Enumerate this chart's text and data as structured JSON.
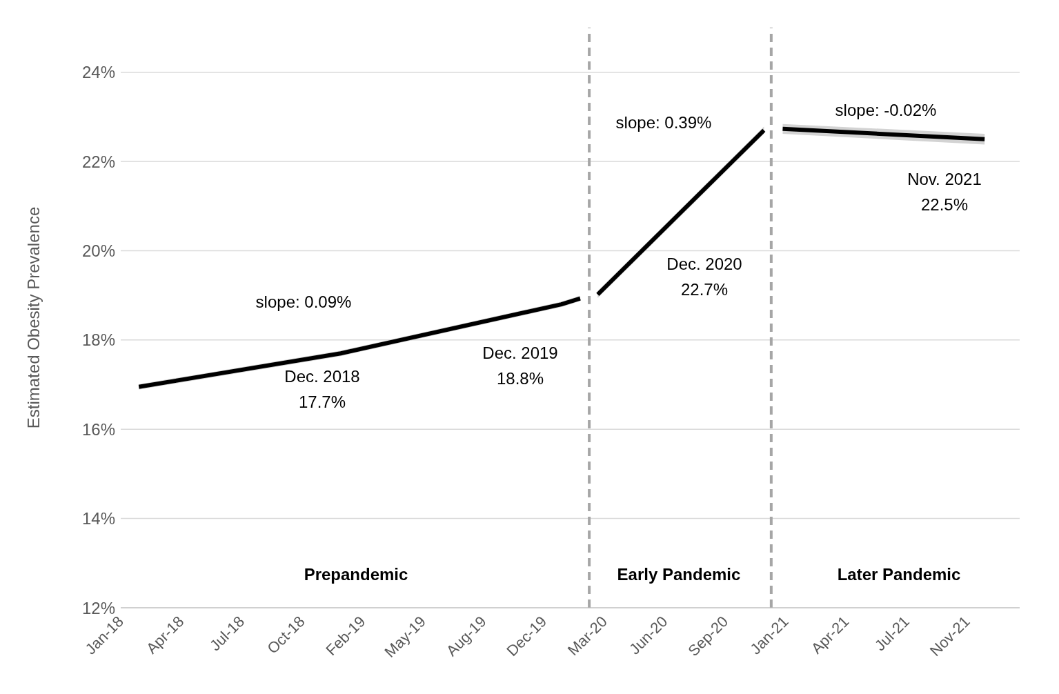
{
  "chart_data": {
    "type": "line",
    "ylabel": "Estimated Obesity Prevalence",
    "x": [
      "2018-01-31",
      "2018-12-31",
      "2019-12-31",
      "2020-01-31",
      "2020-02-15",
      "2020-02-29",
      "2020-11-30",
      "2020-12-15",
      "2020-12-31",
      "2021-11-30"
    ],
    "series": [
      {
        "color": "#000000",
        "values": [
          16.95,
          17.7,
          18.8,
          18.93,
          null,
          19.02,
          22.7,
          null,
          22.73,
          22.5
        ],
        "lower": [
          16.89,
          17.64,
          18.74,
          18.87,
          null,
          18.94,
          22.62,
          null,
          22.62,
          22.38
        ],
        "upper": [
          17.01,
          17.76,
          18.86,
          18.99,
          null,
          19.1,
          22.78,
          null,
          22.84,
          22.62
        ]
      }
    ],
    "xlim": [
      "2018-01-01",
      "2022-01-27"
    ],
    "xticks": [
      {
        "value": "2018-01-01",
        "label": "Jan-18"
      },
      {
        "value": "2018-04-11",
        "label": "Apr-18"
      },
      {
        "value": "2018-07-20",
        "label": "Jul-18"
      },
      {
        "value": "2018-10-28",
        "label": "Oct-18"
      },
      {
        "value": "2019-02-05",
        "label": "Feb-19"
      },
      {
        "value": "2019-05-16",
        "label": "May-19"
      },
      {
        "value": "2019-08-24",
        "label": "Aug-19"
      },
      {
        "value": "2019-12-02",
        "label": "Dec-19"
      },
      {
        "value": "2020-03-11",
        "label": "Mar-20"
      },
      {
        "value": "2020-06-19",
        "label": "Jun-20"
      },
      {
        "value": "2020-09-27",
        "label": "Sep-20"
      },
      {
        "value": "2021-01-05",
        "label": "Jan-21"
      },
      {
        "value": "2021-04-15",
        "label": "Apr-21"
      },
      {
        "value": "2021-07-24",
        "label": "Jul-21"
      },
      {
        "value": "2021-11-01",
        "label": "Nov-21"
      }
    ],
    "ylim": [
      12,
      25
    ],
    "yticks": [
      {
        "value": 12,
        "label": "12%"
      },
      {
        "value": 14,
        "label": "14%"
      },
      {
        "value": 16,
        "label": "16%"
      },
      {
        "value": 18,
        "label": "18%"
      },
      {
        "value": 20,
        "label": "20%"
      },
      {
        "value": 22,
        "label": "22%"
      },
      {
        "value": 24,
        "label": "24%"
      }
    ],
    "grid": "y",
    "legend": false,
    "marker": "none",
    "line_style": "solid",
    "ref_lines": [
      {
        "axis": "x",
        "value": "2020-02-15",
        "color": "#a6a6a6",
        "line_style": "dashed"
      },
      {
        "axis": "x",
        "value": "2020-12-12",
        "color": "#a6a6a6",
        "line_style": "dashed"
      }
    ],
    "annotations": [
      "slope: 0.09%",
      "Dec. 2018\n17.7%",
      "Dec. 2019\n18.8%",
      "slope: 0.39%",
      "Dec. 2020\n22.7%",
      "slope: -0.02%",
      "Nov. 2021\n22.5%",
      "Prepandemic",
      "Early Pandemic",
      "Later Pandemic"
    ]
  }
}
